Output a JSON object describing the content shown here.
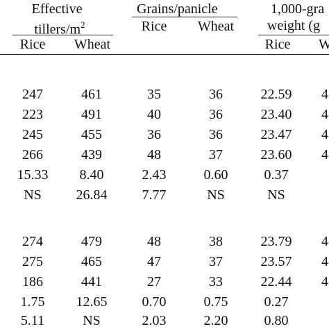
{
  "header": {
    "effective_line1": "Effective",
    "effective_line2": "tillers/m",
    "effective_sup": "2",
    "grains": "Grains/panicle",
    "grainwt_line1": "1,000-gra",
    "grainwt_line2": "weight (g",
    "rice": "Rice",
    "wheat": "Wheat",
    "w_cut": "W"
  },
  "rows_group1": [
    {
      "eff_rice": "247",
      "eff_wheat": "461",
      "gr_rice": "35",
      "gr_wheat": "36",
      "gw_rice": "22.59",
      "gw_wheat": "4"
    },
    {
      "eff_rice": "223",
      "eff_wheat": "491",
      "gr_rice": "40",
      "gr_wheat": "36",
      "gw_rice": "23.40",
      "gw_wheat": "4"
    },
    {
      "eff_rice": "245",
      "eff_wheat": "455",
      "gr_rice": "36",
      "gr_wheat": "36",
      "gw_rice": "23.47",
      "gw_wheat": "4"
    },
    {
      "eff_rice": "266",
      "eff_wheat": "439",
      "gr_rice": "48",
      "gr_wheat": "37",
      "gw_rice": "23.60",
      "gw_wheat": "4"
    },
    {
      "eff_rice": "15.33",
      "eff_wheat": "8.40",
      "gr_rice": "2.43",
      "gr_wheat": "0.60",
      "gw_rice": "0.37",
      "gw_wheat": ""
    },
    {
      "eff_rice": "NS",
      "eff_wheat": "26.84",
      "gr_rice": "7.77",
      "gr_wheat": "NS",
      "gw_rice": "NS",
      "gw_wheat": ""
    }
  ],
  "rows_group2": [
    {
      "eff_rice": "274",
      "eff_wheat": "479",
      "gr_rice": "48",
      "gr_wheat": "38",
      "gw_rice": "23.79",
      "gw_wheat": "4"
    },
    {
      "eff_rice": "275",
      "eff_wheat": "465",
      "gr_rice": "47",
      "gr_wheat": "37",
      "gw_rice": "23.57",
      "gw_wheat": "4"
    },
    {
      "eff_rice": "186",
      "eff_wheat": "441",
      "gr_rice": "27",
      "gr_wheat": "33",
      "gw_rice": "22.44",
      "gw_wheat": "4"
    },
    {
      "eff_rice": "1.75",
      "eff_wheat": "12.65",
      "gr_rice": "0.70",
      "gr_wheat": "0.75",
      "gw_rice": "0.27",
      "gw_wheat": ""
    },
    {
      "eff_rice": "5.11",
      "eff_wheat": "NS",
      "gr_rice": "2.03",
      "gr_wheat": "2.20",
      "gw_rice": "0.80",
      "gw_wheat": ""
    }
  ]
}
